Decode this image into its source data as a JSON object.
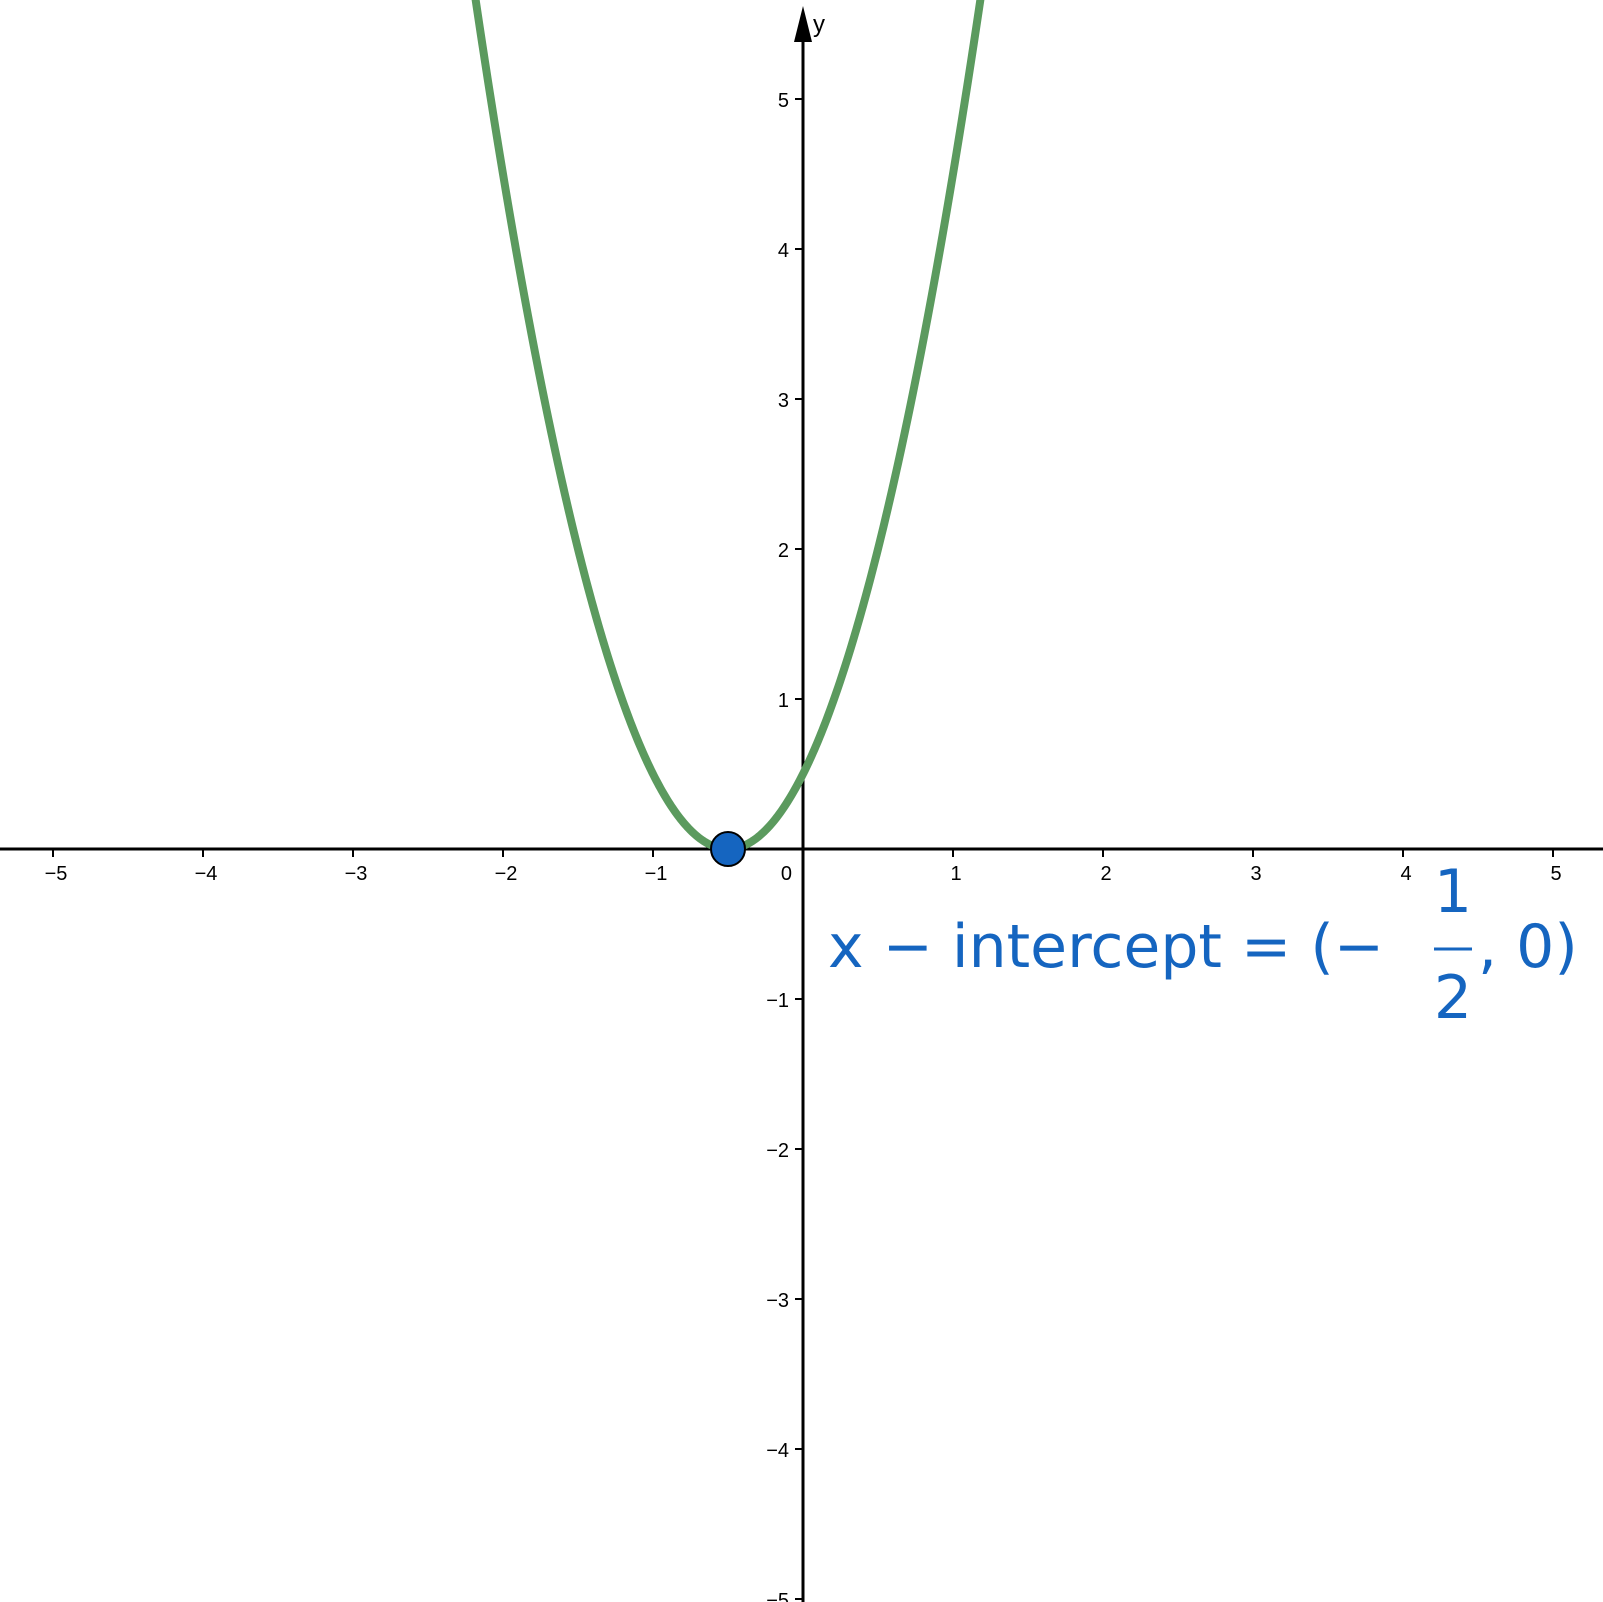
{
  "colors": {
    "curve": "#5b9a5e",
    "point": "#1565c0",
    "axis": "#000000",
    "annotation": "#1565c0"
  },
  "chart_data": {
    "type": "line",
    "title": "",
    "xlabel": "",
    "ylabel": "y",
    "xlim": [
      -5.35,
      5.35
    ],
    "ylim": [
      -5.35,
      5.95
    ],
    "grid": false,
    "x_ticks": [
      -5,
      -4,
      -3,
      -2,
      -1,
      1,
      2,
      3,
      4,
      5
    ],
    "y_ticks": [
      -5,
      -4,
      -3,
      -2,
      -1,
      1,
      2,
      3,
      4,
      5
    ],
    "x_tick_labels": [
      "−5",
      "−4",
      "−3",
      "−2",
      "−1",
      "1",
      "2",
      "3",
      "4",
      "5"
    ],
    "y_tick_labels": [
      "−5",
      "−4",
      "−3",
      "−2",
      "−1",
      "1",
      "2",
      "3",
      "4",
      "5"
    ],
    "origin_label": "0",
    "series": [
      {
        "function": "2x^2 + 2x + 0.5",
        "x": [
          -2.3,
          -2.0,
          -1.5,
          -1.0,
          -0.5,
          0.0,
          0.5,
          1.0,
          1.3
        ],
        "y": [
          6.48,
          4.5,
          2.0,
          0.5,
          0.0,
          0.5,
          2.0,
          4.5,
          6.48
        ]
      }
    ],
    "points": [
      {
        "x": -0.5,
        "y": 0
      }
    ],
    "annotation": {
      "prefix": "x − intercept = (−",
      "numerator": "1",
      "denominator": "2",
      "suffix": ", 0)"
    }
  }
}
